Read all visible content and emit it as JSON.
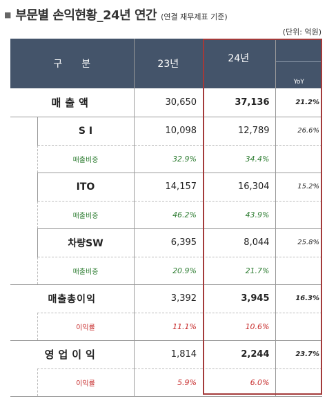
{
  "title": {
    "bullet": "■",
    "main": "부문별 손익현황_24년 연간",
    "sub": "(연결 재무제표 기준)"
  },
  "unit": "(단위: 억원)",
  "header": {
    "category": "구분",
    "y23": "23년",
    "y24": "24년",
    "yoy": "YoY"
  },
  "rows": {
    "revenue": {
      "label": "매출액",
      "y23": "30,650",
      "y24": "37,136",
      "yoy": "21.2%"
    },
    "si": {
      "label": "S I",
      "y23": "10,098",
      "y24": "12,789",
      "yoy": "26.6%"
    },
    "si_ratio": {
      "label": "매출비중",
      "y23": "32.9%",
      "y24": "34.4%"
    },
    "ito": {
      "label": "ITO",
      "y23": "14,157",
      "y24": "16,304",
      "yoy": "15.2%"
    },
    "ito_ratio": {
      "label": "매출비중",
      "y23": "46.2%",
      "y24": "43.9%"
    },
    "vehicle": {
      "label": "차량SW",
      "y23": "6,395",
      "y24": "8,044",
      "yoy": "25.8%"
    },
    "vehicle_ratio": {
      "label": "매출비중",
      "y23": "20.9%",
      "y24": "21.7%"
    },
    "gross": {
      "label": "매출총이익",
      "y23": "3,392",
      "y24": "3,945",
      "yoy": "16.3%"
    },
    "gross_ratio": {
      "label": "이익률",
      "y23": "11.1%",
      "y24": "10.6%"
    },
    "op": {
      "label": "영업이익",
      "y23": "1,814",
      "y24": "2,244",
      "yoy": "23.7%"
    },
    "op_ratio": {
      "label": "이익률",
      "y23": "5.9%",
      "y24": "6.0%"
    }
  },
  "colors": {
    "header_bg": "#44546a",
    "highlight_border": "#a33a3a",
    "ratio_green": "#2e7d32",
    "margin_red": "#c62828"
  }
}
